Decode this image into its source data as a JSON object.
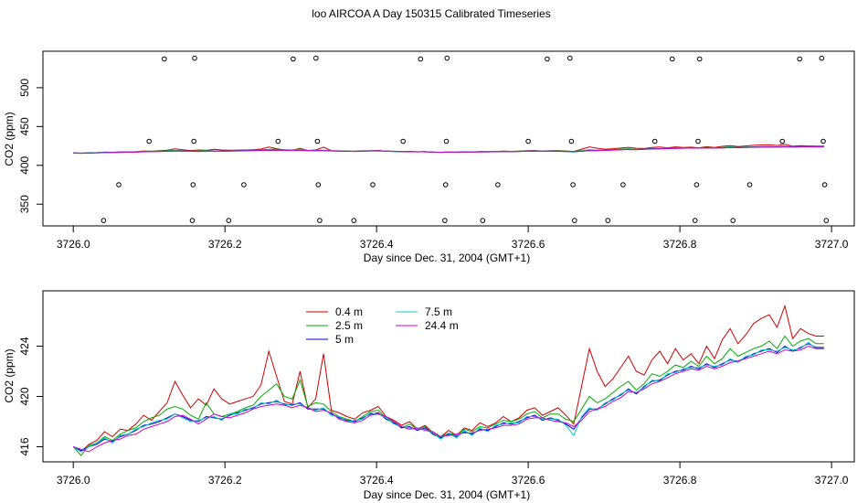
{
  "title": "loo AIRCOA A  Day 150315  Calibrated Timeseries",
  "colors": {
    "frame": "#000000",
    "background": "#ffffff"
  },
  "chart_data": [
    {
      "type": "scatter",
      "panel": "top",
      "xlabel": "Day since Dec. 31, 2004 (GMT+1)",
      "ylabel": "CO2 (ppm)",
      "xlim": [
        3725.96,
        3727.03
      ],
      "ylim": [
        322,
        547
      ],
      "xticks": [
        "3726.0",
        "3726.2",
        "3726.4",
        "3726.6",
        "3726.8",
        "3727.0"
      ],
      "xtick_values": [
        3726.0,
        3726.2,
        3726.4,
        3726.6,
        3726.8,
        3727.0
      ],
      "yticks": [
        "350",
        "400",
        "450",
        "500"
      ],
      "ytick_values": [
        350,
        400,
        450,
        500
      ],
      "grid": false,
      "points": [
        [
          3726.04,
          329
        ],
        [
          3726.06,
          375
        ],
        [
          3726.1,
          431
        ],
        [
          3726.12,
          537
        ],
        [
          3726.157,
          329
        ],
        [
          3726.158,
          375
        ],
        [
          3726.159,
          431
        ],
        [
          3726.16,
          538
        ],
        [
          3726.205,
          329
        ],
        [
          3726.225,
          375
        ],
        [
          3726.27,
          431
        ],
        [
          3726.29,
          537
        ],
        [
          3726.32,
          538
        ],
        [
          3726.322,
          431
        ],
        [
          3726.323,
          375
        ],
        [
          3726.325,
          329
        ],
        [
          3726.37,
          329
        ],
        [
          3726.395,
          375
        ],
        [
          3726.435,
          431
        ],
        [
          3726.458,
          537
        ],
        [
          3726.49,
          329
        ],
        [
          3726.491,
          375
        ],
        [
          3726.492,
          431
        ],
        [
          3726.493,
          538
        ],
        [
          3726.54,
          329
        ],
        [
          3726.56,
          375
        ],
        [
          3726.6,
          431
        ],
        [
          3726.625,
          537
        ],
        [
          3726.655,
          538
        ],
        [
          3726.657,
          431
        ],
        [
          3726.659,
          375
        ],
        [
          3726.661,
          329
        ],
        [
          3726.705,
          329
        ],
        [
          3726.725,
          375
        ],
        [
          3726.767,
          431
        ],
        [
          3726.79,
          537
        ],
        [
          3726.82,
          329
        ],
        [
          3726.822,
          375
        ],
        [
          3726.824,
          431
        ],
        [
          3726.826,
          537
        ],
        [
          3726.87,
          329
        ],
        [
          3726.892,
          375
        ],
        [
          3726.935,
          431
        ],
        [
          3726.958,
          537
        ],
        [
          3726.987,
          538
        ],
        [
          3726.989,
          431
        ],
        [
          3726.991,
          375
        ],
        [
          3726.993,
          329
        ]
      ],
      "series": [
        {
          "name": "0.4 m",
          "color": "#cc0000",
          "x_start": 3726.0,
          "x_end": 3726.99,
          "values": [
            416.0,
            415.6,
            416.2,
            416.5,
            417.2,
            416.8,
            417.4,
            417.3,
            417.8,
            418.5,
            418.1,
            418.8,
            419.5,
            421.2,
            420.1,
            419.1,
            419.8,
            419.3,
            420.6,
            419.8,
            419.4,
            419.6,
            419.8,
            420.0,
            420.9,
            423.6,
            421.6,
            419.6,
            419.4,
            422.0,
            419.1,
            419.8,
            423.4,
            418.9,
            418.7,
            418.4,
            418.2,
            418.7,
            418.9,
            419.2,
            418.4,
            418.1,
            417.7,
            418.0,
            417.4,
            417.7,
            417.1,
            416.8,
            417.3,
            416.9,
            417.5,
            417.3,
            417.9,
            417.6,
            417.9,
            418.4,
            418.0,
            418.3,
            418.9,
            419.1,
            418.5,
            418.8,
            419.1,
            418.5,
            417.8,
            420.8,
            423.8,
            422.0,
            420.8,
            421.4,
            422.3,
            423.2,
            422.0,
            421.7,
            422.9,
            423.6,
            422.6,
            423.8,
            422.9,
            423.4,
            422.6,
            424.0,
            423.0,
            424.5,
            425.4,
            424.2,
            424.9,
            425.8,
            426.2,
            426.5,
            425.5,
            427.2,
            424.6,
            425.4,
            425.0,
            424.8,
            424.8
          ]
        },
        {
          "name": "2.5 m",
          "color": "#00aa00",
          "x_start": 3726.0,
          "x_end": 3726.99,
          "values": [
            416.0,
            415.3,
            416.1,
            416.3,
            416.8,
            416.5,
            417.0,
            417.3,
            417.5,
            418.0,
            418.3,
            418.5,
            419.0,
            419.2,
            419.0,
            418.5,
            418.2,
            419.5,
            418.6,
            418.4,
            418.6,
            418.8,
            419.1,
            419.3,
            420.0,
            420.5,
            421.0,
            420.0,
            419.8,
            421.3,
            419.2,
            419.5,
            419.4,
            418.8,
            418.4,
            418.2,
            418.0,
            418.4,
            418.8,
            418.9,
            418.3,
            418.0,
            417.5,
            417.8,
            417.4,
            417.6,
            417.0,
            416.8,
            417.1,
            416.9,
            417.4,
            417.2,
            417.6,
            417.5,
            417.8,
            418.1,
            418.0,
            418.2,
            418.6,
            418.8,
            418.3,
            418.6,
            418.6,
            418.2,
            418.0,
            419.0,
            420.0,
            419.5,
            419.8,
            420.3,
            420.8,
            421.2,
            420.5,
            421.0,
            421.8,
            421.6,
            422.0,
            422.5,
            422.3,
            422.8,
            422.4,
            423.2,
            422.6,
            423.0,
            423.8,
            423.2,
            423.5,
            423.8,
            424.0,
            424.4,
            423.8,
            424.8,
            424.0,
            424.4,
            424.6,
            424.2,
            424.2
          ]
        },
        {
          "name": "5 m",
          "color": "#0000cc",
          "x_start": 3726.0,
          "x_end": 3726.99,
          "values": [
            416.0,
            415.7,
            416.0,
            416.2,
            416.6,
            416.4,
            416.8,
            417.0,
            417.3,
            417.7,
            417.8,
            418.0,
            418.3,
            418.6,
            418.4,
            418.1,
            418.0,
            418.4,
            418.3,
            418.2,
            418.5,
            418.7,
            418.9,
            419.1,
            419.4,
            419.5,
            419.6,
            419.4,
            419.3,
            419.5,
            419.0,
            419.0,
            419.0,
            418.6,
            418.3,
            418.1,
            418.0,
            418.3,
            418.6,
            418.7,
            418.2,
            417.9,
            417.5,
            417.6,
            417.3,
            417.5,
            417.0,
            416.7,
            417.0,
            416.8,
            417.2,
            417.0,
            417.4,
            417.3,
            417.6,
            417.9,
            417.8,
            418.0,
            418.3,
            418.5,
            418.1,
            418.3,
            418.1,
            417.8,
            417.4,
            418.3,
            419.0,
            419.0,
            419.4,
            419.8,
            420.1,
            420.6,
            420.2,
            420.8,
            421.2,
            421.3,
            421.7,
            422.0,
            422.1,
            422.4,
            422.2,
            422.6,
            422.3,
            422.6,
            422.9,
            422.8,
            423.1,
            423.4,
            423.6,
            423.8,
            423.5,
            424.0,
            423.6,
            423.9,
            424.2,
            423.9,
            423.9
          ]
        },
        {
          "name": "7.5 m",
          "color": "#00cccc",
          "x_start": 3726.0,
          "x_end": 3726.99,
          "values": [
            416.0,
            415.6,
            416.0,
            416.3,
            416.7,
            416.3,
            416.9,
            417.0,
            417.4,
            417.6,
            417.9,
            418.1,
            418.2,
            418.6,
            418.3,
            418.0,
            418.1,
            418.3,
            418.4,
            418.1,
            418.6,
            418.6,
            419.0,
            419.0,
            419.5,
            419.4,
            419.7,
            419.3,
            419.4,
            419.4,
            419.1,
            418.9,
            419.1,
            418.5,
            418.4,
            418.0,
            418.1,
            418.2,
            418.7,
            418.6,
            418.3,
            417.8,
            417.6,
            417.5,
            417.4,
            417.4,
            417.1,
            416.6,
            417.1,
            416.7,
            417.3,
            416.9,
            417.5,
            417.2,
            417.7,
            417.8,
            417.9,
            417.9,
            418.4,
            418.4,
            418.2,
            418.2,
            418.2,
            417.7,
            416.9,
            418.4,
            419.1,
            418.9,
            419.5,
            419.7,
            420.2,
            420.5,
            420.3,
            420.7,
            421.3,
            421.2,
            421.8,
            421.9,
            422.2,
            422.3,
            422.3,
            422.5,
            422.4,
            422.5,
            423.0,
            422.7,
            423.2,
            423.3,
            423.7,
            423.7,
            423.6,
            423.9,
            423.7,
            423.8,
            424.3,
            423.8,
            423.8
          ]
        },
        {
          "name": "24.4 m",
          "color": "#cc00cc",
          "x_start": 3726.0,
          "x_end": 3726.99,
          "values": [
            416.0,
            415.8,
            415.6,
            416.0,
            416.3,
            416.5,
            416.6,
            416.9,
            417.0,
            417.4,
            417.6,
            417.8,
            418.0,
            418.4,
            418.5,
            418.2,
            417.8,
            418.2,
            418.6,
            418.4,
            418.3,
            418.5,
            418.7,
            419.0,
            419.2,
            419.3,
            419.4,
            419.3,
            419.1,
            419.3,
            419.1,
            418.8,
            418.9,
            418.7,
            418.2,
            418.0,
            417.9,
            418.1,
            418.5,
            418.6,
            418.4,
            418.0,
            417.6,
            417.4,
            417.5,
            417.3,
            417.2,
            416.8,
            416.9,
            417.0,
            417.1,
            417.1,
            417.3,
            417.4,
            417.5,
            417.7,
            417.7,
            417.8,
            418.2,
            418.3,
            418.3,
            418.1,
            418.0,
            417.9,
            417.6,
            418.1,
            418.8,
            419.0,
            419.2,
            419.6,
            419.9,
            420.4,
            420.3,
            420.6,
            421.0,
            421.2,
            421.5,
            421.8,
            422.0,
            422.2,
            422.1,
            422.4,
            422.2,
            422.4,
            422.7,
            422.8,
            423.0,
            423.2,
            423.4,
            423.6,
            423.4,
            423.7,
            423.6,
            423.7,
            424.0,
            423.8,
            423.8
          ]
        }
      ]
    },
    {
      "type": "line",
      "panel": "bottom",
      "xlabel": "Day since Dec. 31, 2004 (GMT+1)",
      "ylabel": "CO2 (ppm)",
      "xlim": [
        3725.96,
        3727.03
      ],
      "ylim": [
        414.8,
        428.4
      ],
      "xticks": [
        "3726.0",
        "3726.2",
        "3726.4",
        "3726.6",
        "3726.8",
        "3727.0"
      ],
      "xtick_values": [
        3726.0,
        3726.2,
        3726.4,
        3726.6,
        3726.8,
        3727.0
      ],
      "yticks": [
        "416",
        "420",
        "424"
      ],
      "ytick_values": [
        416,
        420,
        424
      ],
      "grid": false,
      "legend": {
        "position": "top-left",
        "entries": [
          {
            "label": "0.4 m",
            "color": "#cc0000"
          },
          {
            "label": "2.5 m",
            "color": "#00aa00"
          },
          {
            "label": "5 m",
            "color": "#0000cc"
          },
          {
            "label": "7.5 m",
            "color": "#00cccc"
          },
          {
            "label": "24.4 m",
            "color": "#cc00cc"
          }
        ]
      }
    }
  ]
}
